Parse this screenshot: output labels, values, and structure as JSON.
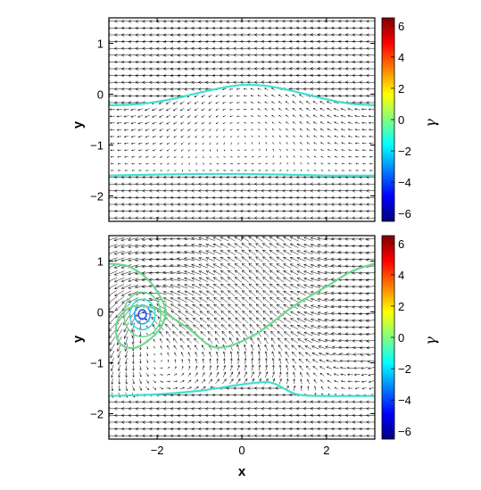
{
  "chart_data": [
    {
      "type": "vector-field",
      "panel": "top",
      "xlim": [
        -3.14159,
        3.14159
      ],
      "ylim": [
        -2.5,
        1.5
      ],
      "xticks": [
        -2,
        0,
        2
      ],
      "yticks": [
        -2,
        -1,
        0,
        1
      ],
      "ytick_labels": [
        "−2",
        "−1",
        "0",
        "1"
      ],
      "ylabel": "y",
      "xlabel": "",
      "show_x_tick_labels": false,
      "interfaces": [
        {
          "name": "",
          "color": "#3fe0d0",
          "x": [
            -3.14,
            -2.5,
            -2.0,
            -1.5,
            -1.0,
            -0.5,
            0.0,
            0.5,
            1.0,
            1.5,
            2.0,
            2.5,
            3.14
          ],
          "y": [
            -0.22,
            -0.2,
            -0.15,
            -0.07,
            0.03,
            0.12,
            0.18,
            0.17,
            0.1,
            0.0,
            -0.1,
            -0.18,
            -0.22
          ]
        },
        {
          "name": "",
          "color": "#3fe0d0",
          "x": [
            -3.14,
            -2.0,
            -1.0,
            0.0,
            1.0,
            2.0,
            3.14
          ],
          "y": [
            -1.6,
            -1.58,
            -1.57,
            -1.57,
            -1.58,
            -1.6,
            -1.6
          ]
        }
      ],
      "colorbar": {
        "label": "γ",
        "range": [
          -6.5,
          6.5
        ],
        "ticks": [
          -6,
          -4,
          -2,
          0,
          2,
          4,
          6
        ],
        "tick_labels": [
          "−6",
          "−4",
          "−2",
          "0",
          "2",
          "4",
          "6"
        ],
        "colormap": "jet"
      }
    },
    {
      "type": "vector-field",
      "panel": "bottom",
      "xlim": [
        -3.14159,
        3.14159
      ],
      "ylim": [
        -2.5,
        1.5
      ],
      "xticks": [
        -2,
        0,
        2
      ],
      "xtick_labels": [
        "−2",
        "0",
        "2"
      ],
      "yticks": [
        -2,
        -1,
        0,
        1
      ],
      "ytick_labels": [
        "−2",
        "−1",
        "0",
        "1"
      ],
      "xlabel": "x",
      "ylabel": "y",
      "vortex_center": [
        -2.35,
        -0.05
      ],
      "interfaces": [
        {
          "name": "",
          "color": "#6fd890",
          "x": [
            -3.14,
            -2.7,
            -2.3,
            -2.0,
            -1.8,
            -2.0,
            -2.5,
            -2.9,
            -2.95,
            -2.6,
            -2.0,
            -1.3,
            -0.6,
            0.3,
            1.2,
            2.0,
            2.6,
            3.14
          ],
          "y": [
            0.95,
            0.9,
            0.7,
            0.4,
            0.0,
            -0.4,
            -0.7,
            -0.6,
            -0.2,
            0.1,
            0.05,
            -0.3,
            -0.7,
            -0.45,
            0.1,
            0.5,
            0.8,
            0.95
          ]
        },
        {
          "name": "",
          "color": "#3fe0d0",
          "x": [
            -3.14,
            -2.0,
            -1.0,
            -0.2,
            0.5,
            0.8,
            1.3,
            2.0,
            3.14
          ],
          "y": [
            -1.65,
            -1.62,
            -1.55,
            -1.45,
            -1.38,
            -1.42,
            -1.62,
            -1.65,
            -1.65
          ]
        }
      ],
      "colorbar": {
        "label": "γ",
        "range": [
          -6.5,
          6.5
        ],
        "ticks": [
          -6,
          -4,
          -2,
          0,
          2,
          4,
          6
        ],
        "tick_labels": [
          "−6",
          "−4",
          "−2",
          "0",
          "2",
          "4",
          "6"
        ],
        "colormap": "jet"
      }
    }
  ]
}
